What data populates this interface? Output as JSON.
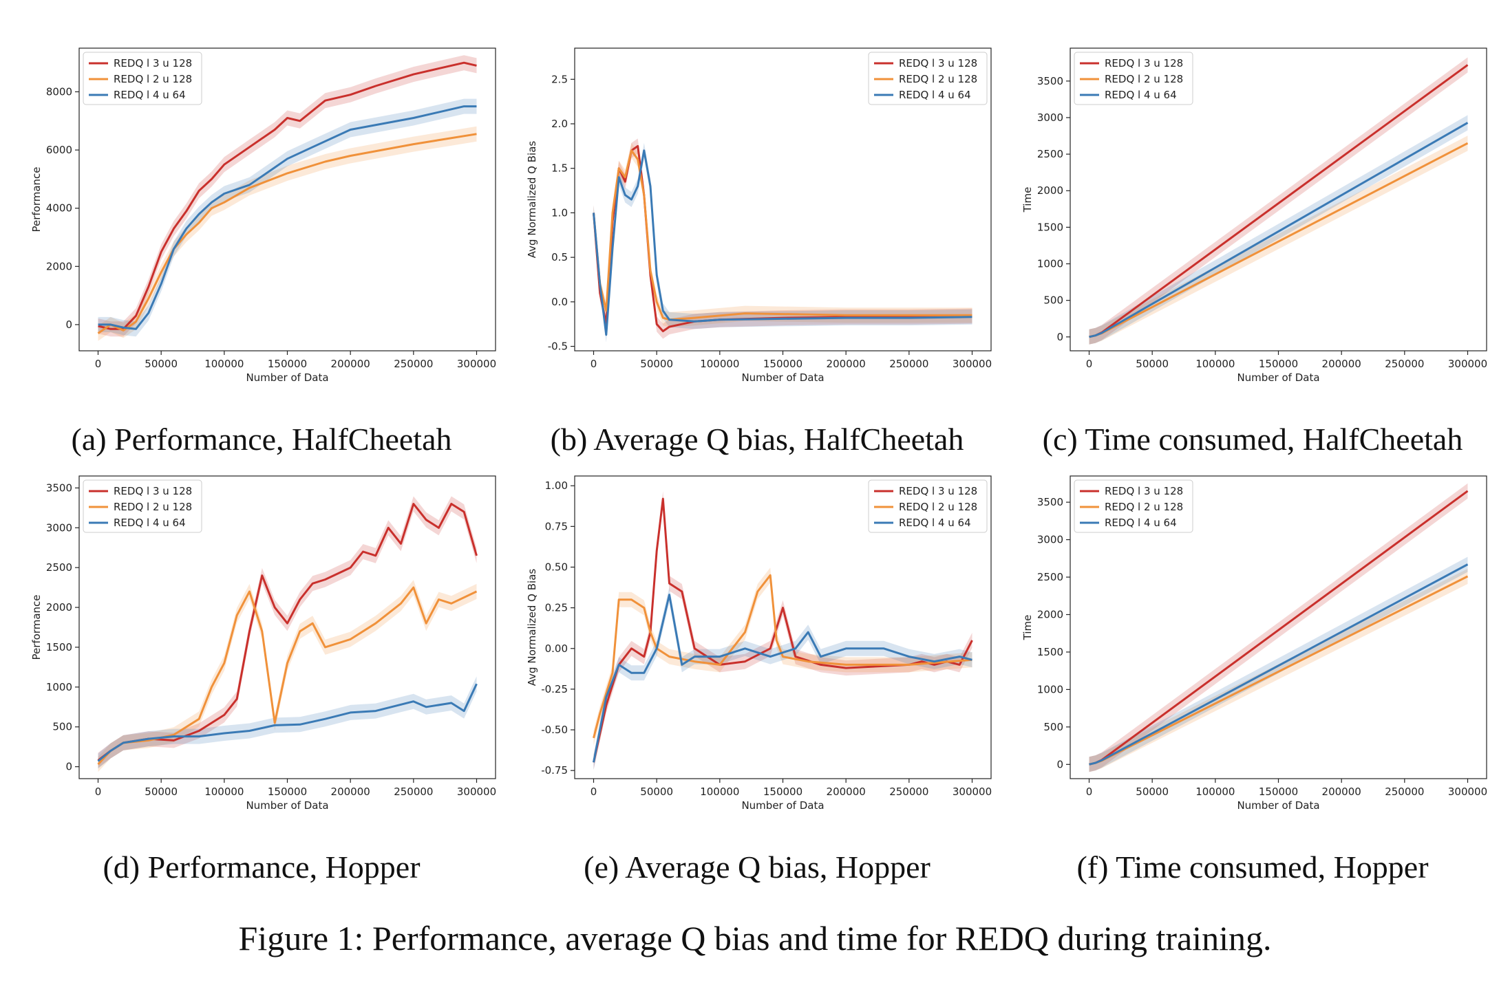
{
  "figure_caption": "Figure 1: Performance, average Q bias and time for REDQ during training.",
  "colors": {
    "red": "#c9302c",
    "orange": "#f0913a",
    "blue": "#3a7ab5"
  },
  "chart_data": [
    {
      "id": "a",
      "type": "line",
      "caption": "(a) Performance, HalfCheetah",
      "title": "",
      "xlabel": "Number of Data",
      "ylabel": "Performance",
      "xlim": [
        -15000,
        315000
      ],
      "ylim": [
        -900,
        9500
      ],
      "xticks": [
        0,
        50000,
        100000,
        150000,
        200000,
        250000,
        300000
      ],
      "yticks": [
        0,
        2000,
        4000,
        6000,
        8000
      ],
      "legend_position": "top-left",
      "series": [
        {
          "name": "REDQ l 3 u 128",
          "color": "#c9302c",
          "x": [
            0,
            10000,
            20000,
            30000,
            40000,
            50000,
            60000,
            70000,
            80000,
            90000,
            100000,
            120000,
            140000,
            150000,
            160000,
            180000,
            200000,
            220000,
            250000,
            270000,
            290000,
            300000
          ],
          "y": [
            -50,
            -150,
            -150,
            300,
            1300,
            2500,
            3300,
            3900,
            4600,
            5000,
            5500,
            6100,
            6700,
            7100,
            7000,
            7700,
            7900,
            8200,
            8600,
            8800,
            9000,
            8900
          ]
        },
        {
          "name": "REDQ l 2 u 128",
          "color": "#f0913a",
          "x": [
            0,
            10000,
            20000,
            30000,
            40000,
            50000,
            60000,
            70000,
            80000,
            90000,
            100000,
            120000,
            150000,
            180000,
            200000,
            250000,
            300000
          ],
          "y": [
            -300,
            0,
            -200,
            100,
            900,
            1800,
            2600,
            3100,
            3500,
            4000,
            4200,
            4700,
            5200,
            5600,
            5800,
            6200,
            6550
          ]
        },
        {
          "name": "REDQ l 4 u 64",
          "color": "#3a7ab5",
          "x": [
            0,
            10000,
            20000,
            30000,
            40000,
            50000,
            60000,
            70000,
            80000,
            90000,
            100000,
            120000,
            140000,
            150000,
            170000,
            200000,
            250000,
            290000,
            300000
          ],
          "y": [
            0,
            0,
            -100,
            -150,
            400,
            1400,
            2600,
            3300,
            3800,
            4200,
            4500,
            4800,
            5400,
            5700,
            6100,
            6700,
            7100,
            7500,
            7500
          ]
        }
      ]
    },
    {
      "id": "b",
      "type": "line",
      "caption": "(b) Average Q bias, HalfCheetah",
      "title": "",
      "xlabel": "Number of Data",
      "ylabel": "Avg Normalized Q Bias",
      "xlim": [
        -15000,
        315000
      ],
      "ylim": [
        -0.55,
        2.85
      ],
      "xticks": [
        0,
        50000,
        100000,
        150000,
        200000,
        250000,
        300000
      ],
      "yticks": [
        -0.5,
        0.0,
        0.5,
        1.0,
        1.5,
        2.0,
        2.5
      ],
      "legend_position": "top-right",
      "series": [
        {
          "name": "REDQ l 3 u 128",
          "color": "#c9302c",
          "x": [
            0,
            5000,
            10000,
            15000,
            20000,
            25000,
            30000,
            35000,
            40000,
            45000,
            50000,
            55000,
            60000,
            70000,
            80000,
            100000,
            150000,
            200000,
            250000,
            300000
          ],
          "y": [
            1.0,
            0.1,
            -0.25,
            0.9,
            1.5,
            1.35,
            1.7,
            1.75,
            1.2,
            0.3,
            -0.25,
            -0.33,
            -0.28,
            -0.25,
            -0.22,
            -0.2,
            -0.18,
            -0.17,
            -0.17,
            -0.16
          ]
        },
        {
          "name": "REDQ l 2 u 128",
          "color": "#f0913a",
          "x": [
            0,
            5000,
            10000,
            15000,
            20000,
            25000,
            30000,
            35000,
            40000,
            45000,
            50000,
            55000,
            60000,
            80000,
            120000,
            160000,
            200000,
            250000,
            300000
          ],
          "y": [
            1.0,
            0.2,
            -0.1,
            1.0,
            1.5,
            1.4,
            1.7,
            1.6,
            1.2,
            0.35,
            0.0,
            -0.18,
            -0.2,
            -0.18,
            -0.13,
            -0.14,
            -0.15,
            -0.15,
            -0.15
          ]
        },
        {
          "name": "REDQ l 4 u 64",
          "color": "#3a7ab5",
          "x": [
            0,
            5000,
            10000,
            15000,
            20000,
            25000,
            30000,
            35000,
            40000,
            45000,
            50000,
            55000,
            60000,
            80000,
            100000,
            150000,
            200000,
            250000,
            300000
          ],
          "y": [
            1.0,
            0.2,
            -0.37,
            0.6,
            1.4,
            1.2,
            1.15,
            1.3,
            1.7,
            1.3,
            0.3,
            -0.1,
            -0.2,
            -0.22,
            -0.2,
            -0.19,
            -0.18,
            -0.18,
            -0.17
          ]
        }
      ]
    },
    {
      "id": "c",
      "type": "line",
      "caption": "(c) Time consumed, HalfCheetah",
      "title": "",
      "xlabel": "Number of Data",
      "ylabel": "Time",
      "xlim": [
        -15000,
        315000
      ],
      "ylim": [
        -190,
        3950
      ],
      "xticks": [
        0,
        50000,
        100000,
        150000,
        200000,
        250000,
        300000
      ],
      "yticks": [
        0,
        500,
        1000,
        1500,
        2000,
        2500,
        3000,
        3500
      ],
      "legend_position": "top-left",
      "series": [
        {
          "name": "REDQ l 3 u 128",
          "color": "#c9302c",
          "x": [
            0,
            5000,
            10000,
            300000
          ],
          "y": [
            0,
            20,
            60,
            3720
          ]
        },
        {
          "name": "REDQ l 2 u 128",
          "color": "#f0913a",
          "x": [
            0,
            5000,
            10000,
            300000
          ],
          "y": [
            0,
            20,
            50,
            2650
          ]
        },
        {
          "name": "REDQ l 4 u 64",
          "color": "#3a7ab5",
          "x": [
            0,
            5000,
            10000,
            300000
          ],
          "y": [
            0,
            20,
            55,
            2930
          ]
        }
      ]
    },
    {
      "id": "d",
      "type": "line",
      "caption": "(d) Performance, Hopper",
      "title": "",
      "xlabel": "Number of Data",
      "ylabel": "Performance",
      "xlim": [
        -15000,
        315000
      ],
      "ylim": [
        -150,
        3650
      ],
      "xticks": [
        0,
        50000,
        100000,
        150000,
        200000,
        250000,
        300000
      ],
      "yticks": [
        0,
        500,
        1000,
        1500,
        2000,
        2500,
        3000,
        3500
      ],
      "legend_position": "top-left",
      "series": [
        {
          "name": "REDQ l 3 u 128",
          "color": "#c9302c",
          "x": [
            0,
            10000,
            20000,
            40000,
            60000,
            80000,
            100000,
            110000,
            120000,
            130000,
            135000,
            140000,
            150000,
            160000,
            170000,
            180000,
            200000,
            210000,
            220000,
            230000,
            240000,
            250000,
            260000,
            270000,
            280000,
            290000,
            300000
          ],
          "y": [
            80,
            200,
            300,
            350,
            330,
            450,
            650,
            850,
            1700,
            2400,
            2200,
            2000,
            1800,
            2100,
            2300,
            2350,
            2500,
            2700,
            2650,
            3000,
            2800,
            3300,
            3100,
            3000,
            3300,
            3200,
            2650
          ]
        },
        {
          "name": "REDQ l 2 u 128",
          "color": "#f0913a",
          "x": [
            0,
            10000,
            20000,
            40000,
            60000,
            80000,
            90000,
            100000,
            110000,
            120000,
            130000,
            140000,
            150000,
            160000,
            170000,
            180000,
            200000,
            220000,
            240000,
            250000,
            260000,
            270000,
            280000,
            300000
          ],
          "y": [
            30,
            200,
            300,
            330,
            400,
            600,
            1000,
            1300,
            1900,
            2200,
            1700,
            550,
            1300,
            1700,
            1800,
            1500,
            1600,
            1800,
            2050,
            2250,
            1800,
            2100,
            2050,
            2200
          ]
        },
        {
          "name": "REDQ l 4 u 64",
          "color": "#3a7ab5",
          "x": [
            0,
            10000,
            20000,
            40000,
            60000,
            80000,
            100000,
            120000,
            140000,
            160000,
            180000,
            200000,
            220000,
            240000,
            250000,
            260000,
            280000,
            290000,
            300000
          ],
          "y": [
            70,
            200,
            300,
            350,
            380,
            380,
            420,
            450,
            520,
            530,
            600,
            680,
            700,
            780,
            820,
            750,
            800,
            700,
            1040
          ]
        }
      ]
    },
    {
      "id": "e",
      "type": "line",
      "caption": "(e) Average Q bias, Hopper",
      "title": "",
      "xlabel": "Number of Data",
      "ylabel": "Avg Normalized Q Bias",
      "xlim": [
        -15000,
        315000
      ],
      "ylim": [
        -0.8,
        1.06
      ],
      "xticks": [
        0,
        50000,
        100000,
        150000,
        200000,
        250000,
        300000
      ],
      "yticks": [
        -0.75,
        -0.5,
        -0.25,
        0.0,
        0.25,
        0.5,
        0.75,
        1.0
      ],
      "legend_position": "top-right",
      "series": [
        {
          "name": "REDQ l 3 u 128",
          "color": "#c9302c",
          "x": [
            0,
            10000,
            20000,
            30000,
            40000,
            45000,
            50000,
            55000,
            60000,
            70000,
            80000,
            90000,
            100000,
            120000,
            140000,
            150000,
            160000,
            180000,
            200000,
            250000,
            260000,
            270000,
            280000,
            290000,
            300000
          ],
          "y": [
            -0.7,
            -0.35,
            -0.1,
            0.0,
            -0.05,
            0.1,
            0.6,
            0.92,
            0.4,
            0.35,
            0.0,
            -0.05,
            -0.1,
            -0.08,
            0.0,
            0.25,
            -0.05,
            -0.1,
            -0.12,
            -0.1,
            -0.08,
            -0.1,
            -0.08,
            -0.1,
            0.05
          ]
        },
        {
          "name": "REDQ l 2 u 128",
          "color": "#f0913a",
          "x": [
            0,
            5000,
            15000,
            20000,
            30000,
            40000,
            45000,
            50000,
            60000,
            80000,
            100000,
            120000,
            130000,
            140000,
            145000,
            150000,
            170000,
            200000,
            250000,
            300000
          ],
          "y": [
            -0.55,
            -0.4,
            -0.15,
            0.3,
            0.3,
            0.25,
            0.1,
            0.0,
            -0.05,
            -0.08,
            -0.1,
            0.1,
            0.35,
            0.45,
            0.05,
            -0.05,
            -0.08,
            -0.1,
            -0.1,
            -0.07
          ]
        },
        {
          "name": "REDQ l 4 u 64",
          "color": "#3a7ab5",
          "x": [
            0,
            10000,
            20000,
            30000,
            40000,
            50000,
            60000,
            70000,
            80000,
            100000,
            120000,
            140000,
            160000,
            170000,
            180000,
            200000,
            230000,
            250000,
            270000,
            290000,
            300000
          ],
          "y": [
            -0.7,
            -0.3,
            -0.1,
            -0.15,
            -0.15,
            0.0,
            0.33,
            -0.1,
            -0.05,
            -0.05,
            0.0,
            -0.05,
            0.0,
            0.1,
            -0.05,
            0.0,
            0.0,
            -0.05,
            -0.08,
            -0.05,
            -0.07
          ]
        }
      ]
    },
    {
      "id": "f",
      "type": "line",
      "caption": "(f) Time consumed, Hopper",
      "title": "",
      "xlabel": "Number of Data",
      "ylabel": "Time",
      "xlim": [
        -15000,
        315000
      ],
      "ylim": [
        -190,
        3850
      ],
      "xticks": [
        0,
        50000,
        100000,
        150000,
        200000,
        250000,
        300000
      ],
      "yticks": [
        0,
        500,
        1000,
        1500,
        2000,
        2500,
        3000,
        3500
      ],
      "legend_position": "top-left",
      "series": [
        {
          "name": "REDQ l 3 u 128",
          "color": "#c9302c",
          "x": [
            0,
            5000,
            10000,
            300000
          ],
          "y": [
            0,
            20,
            60,
            3650
          ]
        },
        {
          "name": "REDQ l 2 u 128",
          "color": "#f0913a",
          "x": [
            0,
            5000,
            10000,
            300000
          ],
          "y": [
            0,
            20,
            50,
            2510
          ]
        },
        {
          "name": "REDQ l 4 u 64",
          "color": "#3a7ab5",
          "x": [
            0,
            5000,
            10000,
            300000
          ],
          "y": [
            0,
            20,
            55,
            2670
          ]
        }
      ]
    }
  ]
}
